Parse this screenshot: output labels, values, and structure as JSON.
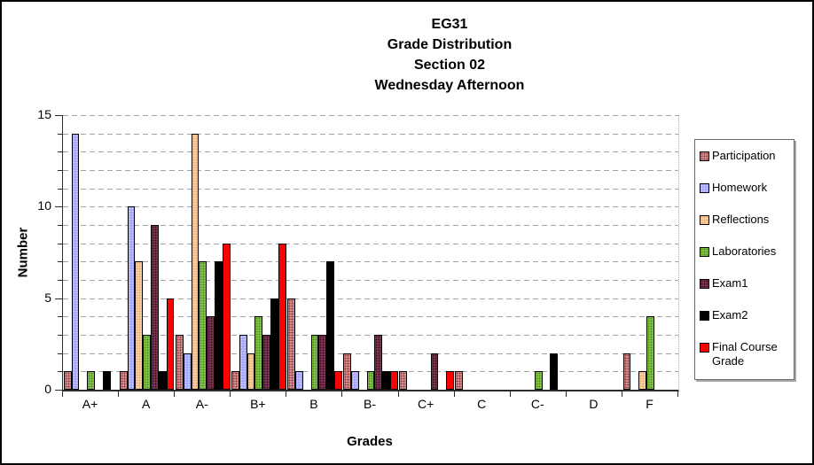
{
  "title": {
    "lines": [
      "EG31",
      "Grade Distribution",
      "Section 02",
      "Wednesday Afternoon"
    ]
  },
  "chart_data": {
    "type": "bar",
    "title": "EG31 Grade Distribution Section 02 Wednesday Afternoon",
    "xlabel": "Grades",
    "ylabel": "Number",
    "ylim": [
      0,
      15
    ],
    "ytick_labels": [
      "0",
      "5",
      "10",
      "15"
    ],
    "yticks_major": [
      0,
      5,
      10,
      15
    ],
    "gridline_interval": 1,
    "grid": "horizontal-dashed",
    "legend_position": "right",
    "categories": [
      "A+",
      "A",
      "A-",
      "B+",
      "B",
      "B-",
      "C+",
      "C",
      "C-",
      "D",
      "F"
    ],
    "series": [
      {
        "name": "Participation",
        "values": [
          1,
          1,
          3,
          1,
          5,
          2,
          1,
          1,
          0,
          0,
          2
        ],
        "color": "#DFA0A0",
        "dot": "#8C3030"
      },
      {
        "name": "Homework",
        "values": [
          14,
          10,
          2,
          3,
          1,
          1,
          0,
          0,
          0,
          0,
          0
        ],
        "color": "#9A9AFA",
        "dot": "#D0D0FF"
      },
      {
        "name": "Reflections",
        "values": [
          0,
          7,
          14,
          2,
          0,
          0,
          0,
          0,
          0,
          0,
          1
        ],
        "color": "#F9DAB4",
        "dot": "#EDA15F"
      },
      {
        "name": "Laboratories",
        "values": [
          1,
          3,
          7,
          4,
          3,
          1,
          0,
          0,
          1,
          0,
          4
        ],
        "color": "#8CCE4E",
        "dot": "#4E8A1D"
      },
      {
        "name": "Exam1",
        "values": [
          0,
          9,
          4,
          3,
          3,
          3,
          2,
          0,
          0,
          0,
          0
        ],
        "color": "#8F3A5E",
        "dot": "#30101F"
      },
      {
        "name": "Exam2",
        "values": [
          1,
          1,
          7,
          5,
          7,
          1,
          0,
          0,
          2,
          0,
          0
        ],
        "color": "#000000",
        "dot": "#000000"
      },
      {
        "name": "Final Course Grade",
        "values": [
          0,
          5,
          8,
          8,
          1,
          1,
          1,
          0,
          0,
          0,
          0
        ],
        "color": "#FE0000",
        "dot": "#FE0000"
      }
    ]
  }
}
